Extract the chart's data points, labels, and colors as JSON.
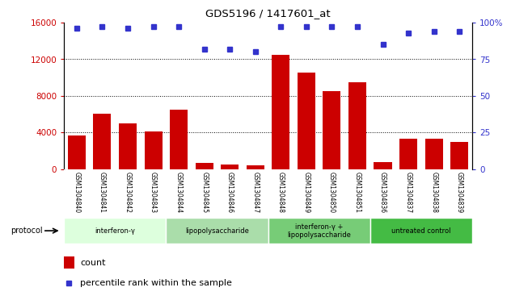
{
  "title": "GDS5196 / 1417601_at",
  "samples": [
    "GSM1304840",
    "GSM1304841",
    "GSM1304842",
    "GSM1304843",
    "GSM1304844",
    "GSM1304845",
    "GSM1304846",
    "GSM1304847",
    "GSM1304848",
    "GSM1304849",
    "GSM1304850",
    "GSM1304851",
    "GSM1304836",
    "GSM1304837",
    "GSM1304838",
    "GSM1304839"
  ],
  "counts": [
    3700,
    6000,
    5000,
    4100,
    6500,
    700,
    500,
    400,
    12500,
    10500,
    8500,
    9500,
    750,
    3300,
    3300,
    3000
  ],
  "percentiles": [
    96,
    97,
    96,
    97,
    97,
    82,
    82,
    80,
    97,
    97,
    97,
    97,
    85,
    93,
    94,
    94
  ],
  "left_ylim": [
    0,
    16000
  ],
  "right_ylim": [
    0,
    100
  ],
  "left_yticks": [
    0,
    4000,
    8000,
    12000,
    16000
  ],
  "right_yticks": [
    0,
    25,
    50,
    75,
    100
  ],
  "right_yticklabels": [
    "0",
    "25",
    "50",
    "75",
    "100%"
  ],
  "bar_color": "#cc0000",
  "dot_color": "#3333cc",
  "groups": [
    {
      "label": "interferon-γ",
      "start": 0,
      "end": 4,
      "color": "#ddffdd"
    },
    {
      "label": "lipopolysaccharide",
      "start": 4,
      "end": 8,
      "color": "#aaddaa"
    },
    {
      "label": "interferon-γ +\nlipopolysaccharide",
      "start": 8,
      "end": 12,
      "color": "#77cc77"
    },
    {
      "label": "untreated control",
      "start": 12,
      "end": 16,
      "color": "#44bb44"
    }
  ],
  "protocol_label": "protocol",
  "legend_count_label": "count",
  "legend_percentile_label": "percentile rank within the sample",
  "bg_color": "#ffffff",
  "tick_label_bg": "#cccccc",
  "grid_yticks": [
    4000,
    8000,
    12000
  ]
}
